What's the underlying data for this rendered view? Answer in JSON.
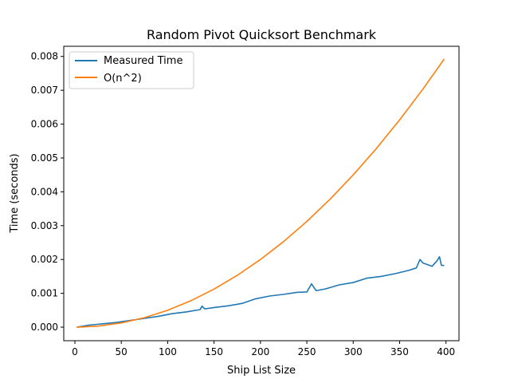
{
  "chart_data": {
    "type": "line",
    "title": "Random Pivot Quicksort Benchmark",
    "xlabel": "Ship List Size",
    "ylabel": "Time (seconds)",
    "xlim": [
      -12,
      414
    ],
    "ylim": [
      -0.0004,
      0.0083
    ],
    "xticks": [
      0,
      50,
      100,
      150,
      200,
      250,
      300,
      350,
      400
    ],
    "yticks": [
      0.0,
      0.001,
      0.002,
      0.003,
      0.004,
      0.005,
      0.006,
      0.007,
      0.008
    ],
    "ytick_labels": [
      "0.000",
      "0.001",
      "0.002",
      "0.003",
      "0.004",
      "0.005",
      "0.006",
      "0.007",
      "0.008"
    ],
    "grid": false,
    "legend": "upper-left",
    "series": [
      {
        "name": "Measured Time",
        "color": "#1f77b4",
        "x": [
          2,
          15,
          30,
          45,
          60,
          75,
          90,
          105,
          120,
          135,
          137,
          140,
          150,
          165,
          180,
          195,
          210,
          225,
          240,
          250,
          255,
          260,
          270,
          285,
          300,
          315,
          330,
          345,
          360,
          368,
          372,
          375,
          380,
          385,
          390,
          393,
          395,
          398
        ],
        "y": [
          0.0,
          6e-05,
          0.0001,
          0.00014,
          0.0002,
          0.00026,
          0.00032,
          0.0004,
          0.00045,
          0.00052,
          0.00062,
          0.00054,
          0.00058,
          0.00063,
          0.0007,
          0.00084,
          0.00092,
          0.00097,
          0.00103,
          0.00104,
          0.00128,
          0.00108,
          0.00113,
          0.00125,
          0.00132,
          0.00145,
          0.0015,
          0.00158,
          0.00168,
          0.00175,
          0.002,
          0.0019,
          0.00185,
          0.0018,
          0.00195,
          0.00208,
          0.00183,
          0.00182
        ]
      },
      {
        "name": "O(n^2)",
        "color": "#ff7f0e",
        "x": [
          2,
          25,
          50,
          75,
          100,
          125,
          150,
          175,
          200,
          225,
          250,
          275,
          300,
          325,
          350,
          375,
          398
        ],
        "y": [
          1e-07,
          3.13e-05,
          0.000125,
          0.000281,
          0.0005,
          0.000781,
          0.001125,
          0.001531,
          0.002,
          0.002531,
          0.003125,
          0.003781,
          0.0045,
          0.005281,
          0.006125,
          0.007031,
          0.00792
        ]
      }
    ]
  }
}
